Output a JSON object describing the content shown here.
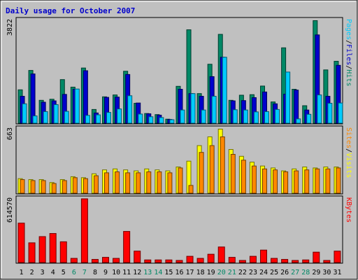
{
  "chart_data": {
    "type": "bar",
    "title": "Daily usage for October 2007",
    "categories": [
      "1",
      "2",
      "3",
      "4",
      "5",
      "6",
      "7",
      "8",
      "9",
      "10",
      "11",
      "12",
      "13",
      "14",
      "15",
      "16",
      "17",
      "18",
      "19",
      "20",
      "21",
      "22",
      "23",
      "24",
      "25",
      "26",
      "27",
      "28",
      "29",
      "30",
      "31"
    ],
    "weekend_days": [
      "6",
      "7",
      "13",
      "14",
      "20",
      "21",
      "27",
      "28"
    ],
    "panels": [
      {
        "id": "hits",
        "ymax_label": "3822",
        "ylim": [
          0,
          3822
        ],
        "right_label": {
          "parts": [
            "Pages",
            "/",
            "Files",
            "/",
            "Hits"
          ],
          "colors": [
            "#00ccff",
            "#000000",
            "#0000cc",
            "#000000",
            "#008866"
          ]
        },
        "series": [
          {
            "name": "Hits",
            "color": "#008866",
            "values": [
              1240,
              1960,
              850,
              890,
              1620,
              1340,
              2050,
              510,
              980,
              1050,
              1930,
              740,
              360,
              320,
              150,
              1370,
              3470,
              1100,
              2190,
              3300,
              850,
              1040,
              1060,
              1380,
              790,
              2800,
              1260,
              650,
              3810,
              1980,
              2300
            ]
          },
          {
            "name": "Files",
            "color": "#0000cc",
            "values": [
              1000,
              1830,
              780,
              830,
              1070,
              1260,
              1950,
              380,
              960,
              970,
              1810,
              750,
              350,
              300,
              140,
              1260,
              1100,
              1000,
              1730,
              2450,
              830,
              840,
              950,
              1160,
              720,
              1080,
              1230,
              490,
              3280,
              1000,
              2150
            ]
          },
          {
            "name": "Pages",
            "color": "#00ccff",
            "values": [
              720,
              270,
              430,
              690,
              440,
              1270,
              290,
              310,
              400,
              530,
              1020,
              340,
              240,
              210,
              130,
              490,
              1100,
              490,
              1000,
              2450,
              500,
              490,
              420,
              430,
              510,
              1900,
              160,
              330,
              1050,
              740,
              750
            ]
          }
        ]
      },
      {
        "id": "visits",
        "ymax_label": "663",
        "ylim": [
          0,
          663
        ],
        "right_label": {
          "parts": [
            "Sites",
            "/",
            "Visits"
          ],
          "colors": [
            "#ff8800",
            "#000000",
            "#ffff00"
          ]
        },
        "series": [
          {
            "name": "Visits",
            "color": "#ffff00",
            "values": [
              150,
              140,
              140,
              110,
              140,
              170,
              160,
              200,
              240,
              250,
              240,
              230,
              250,
              240,
              230,
              270,
              330,
              490,
              580,
              660,
              450,
              380,
              320,
              280,
              260,
              230,
              250,
              270,
              260,
              270,
              270
            ]
          },
          {
            "name": "Sites",
            "color": "#ff8800",
            "values": [
              140,
              130,
              130,
              100,
              130,
              160,
              150,
              180,
              210,
              220,
              210,
              210,
              220,
              220,
              210,
              260,
              80,
              420,
              490,
              580,
              400,
              340,
              280,
              250,
              240,
              220,
              230,
              240,
              250,
              250,
              260
            ]
          }
        ]
      },
      {
        "id": "kbytes",
        "ymax_label": "614570",
        "ylim": [
          0,
          614570
        ],
        "right_label": {
          "parts": [
            "KBytes"
          ],
          "colors": [
            "#ff0000"
          ]
        },
        "series": [
          {
            "name": "KBytes",
            "color": "#ff0000",
            "values": [
              380000,
              190000,
              250000,
              280000,
              200000,
              40000,
              614570,
              30000,
              50000,
              40000,
              300000,
              110000,
              25000,
              25000,
              25000,
              20000,
              60000,
              40000,
              80000,
              150000,
              50000,
              20000,
              60000,
              120000,
              40000,
              30000,
              20000,
              25000,
              100000,
              20000,
              110000
            ]
          }
        ]
      }
    ]
  }
}
